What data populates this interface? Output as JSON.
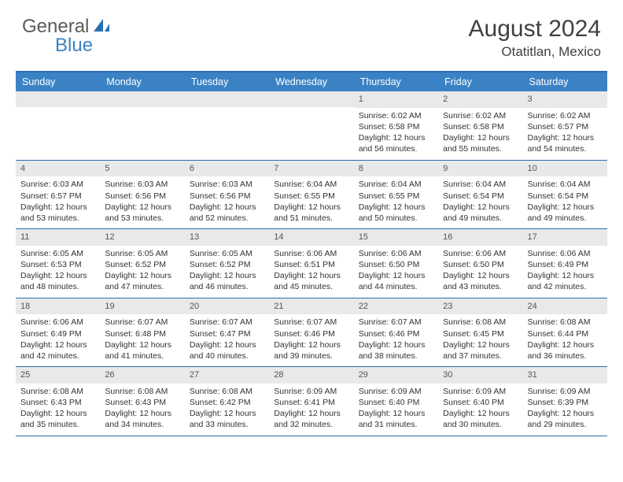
{
  "logo": {
    "text_general": "General",
    "text_blue": "Blue",
    "icon_color": "#2a6fb0"
  },
  "title": "August 2024",
  "location": "Otatitlan, Mexico",
  "colors": {
    "header_bg": "#3b82c4",
    "border": "#2a6fb0",
    "daynum_bg": "#e9e9e9",
    "text": "#333333",
    "title_text": "#404040"
  },
  "weekdays": [
    "Sunday",
    "Monday",
    "Tuesday",
    "Wednesday",
    "Thursday",
    "Friday",
    "Saturday"
  ],
  "weeks": [
    [
      null,
      null,
      null,
      null,
      {
        "n": "1",
        "sunrise": "6:02 AM",
        "sunset": "6:58 PM",
        "daylight": "12 hours and 56 minutes."
      },
      {
        "n": "2",
        "sunrise": "6:02 AM",
        "sunset": "6:58 PM",
        "daylight": "12 hours and 55 minutes."
      },
      {
        "n": "3",
        "sunrise": "6:02 AM",
        "sunset": "6:57 PM",
        "daylight": "12 hours and 54 minutes."
      }
    ],
    [
      {
        "n": "4",
        "sunrise": "6:03 AM",
        "sunset": "6:57 PM",
        "daylight": "12 hours and 53 minutes."
      },
      {
        "n": "5",
        "sunrise": "6:03 AM",
        "sunset": "6:56 PM",
        "daylight": "12 hours and 53 minutes."
      },
      {
        "n": "6",
        "sunrise": "6:03 AM",
        "sunset": "6:56 PM",
        "daylight": "12 hours and 52 minutes."
      },
      {
        "n": "7",
        "sunrise": "6:04 AM",
        "sunset": "6:55 PM",
        "daylight": "12 hours and 51 minutes."
      },
      {
        "n": "8",
        "sunrise": "6:04 AM",
        "sunset": "6:55 PM",
        "daylight": "12 hours and 50 minutes."
      },
      {
        "n": "9",
        "sunrise": "6:04 AM",
        "sunset": "6:54 PM",
        "daylight": "12 hours and 49 minutes."
      },
      {
        "n": "10",
        "sunrise": "6:04 AM",
        "sunset": "6:54 PM",
        "daylight": "12 hours and 49 minutes."
      }
    ],
    [
      {
        "n": "11",
        "sunrise": "6:05 AM",
        "sunset": "6:53 PM",
        "daylight": "12 hours and 48 minutes."
      },
      {
        "n": "12",
        "sunrise": "6:05 AM",
        "sunset": "6:52 PM",
        "daylight": "12 hours and 47 minutes."
      },
      {
        "n": "13",
        "sunrise": "6:05 AM",
        "sunset": "6:52 PM",
        "daylight": "12 hours and 46 minutes."
      },
      {
        "n": "14",
        "sunrise": "6:06 AM",
        "sunset": "6:51 PM",
        "daylight": "12 hours and 45 minutes."
      },
      {
        "n": "15",
        "sunrise": "6:06 AM",
        "sunset": "6:50 PM",
        "daylight": "12 hours and 44 minutes."
      },
      {
        "n": "16",
        "sunrise": "6:06 AM",
        "sunset": "6:50 PM",
        "daylight": "12 hours and 43 minutes."
      },
      {
        "n": "17",
        "sunrise": "6:06 AM",
        "sunset": "6:49 PM",
        "daylight": "12 hours and 42 minutes."
      }
    ],
    [
      {
        "n": "18",
        "sunrise": "6:06 AM",
        "sunset": "6:49 PM",
        "daylight": "12 hours and 42 minutes."
      },
      {
        "n": "19",
        "sunrise": "6:07 AM",
        "sunset": "6:48 PM",
        "daylight": "12 hours and 41 minutes."
      },
      {
        "n": "20",
        "sunrise": "6:07 AM",
        "sunset": "6:47 PM",
        "daylight": "12 hours and 40 minutes."
      },
      {
        "n": "21",
        "sunrise": "6:07 AM",
        "sunset": "6:46 PM",
        "daylight": "12 hours and 39 minutes."
      },
      {
        "n": "22",
        "sunrise": "6:07 AM",
        "sunset": "6:46 PM",
        "daylight": "12 hours and 38 minutes."
      },
      {
        "n": "23",
        "sunrise": "6:08 AM",
        "sunset": "6:45 PM",
        "daylight": "12 hours and 37 minutes."
      },
      {
        "n": "24",
        "sunrise": "6:08 AM",
        "sunset": "6:44 PM",
        "daylight": "12 hours and 36 minutes."
      }
    ],
    [
      {
        "n": "25",
        "sunrise": "6:08 AM",
        "sunset": "6:43 PM",
        "daylight": "12 hours and 35 minutes."
      },
      {
        "n": "26",
        "sunrise": "6:08 AM",
        "sunset": "6:43 PM",
        "daylight": "12 hours and 34 minutes."
      },
      {
        "n": "27",
        "sunrise": "6:08 AM",
        "sunset": "6:42 PM",
        "daylight": "12 hours and 33 minutes."
      },
      {
        "n": "28",
        "sunrise": "6:09 AM",
        "sunset": "6:41 PM",
        "daylight": "12 hours and 32 minutes."
      },
      {
        "n": "29",
        "sunrise": "6:09 AM",
        "sunset": "6:40 PM",
        "daylight": "12 hours and 31 minutes."
      },
      {
        "n": "30",
        "sunrise": "6:09 AM",
        "sunset": "6:40 PM",
        "daylight": "12 hours and 30 minutes."
      },
      {
        "n": "31",
        "sunrise": "6:09 AM",
        "sunset": "6:39 PM",
        "daylight": "12 hours and 29 minutes."
      }
    ]
  ],
  "labels": {
    "sunrise": "Sunrise:",
    "sunset": "Sunset:",
    "daylight": "Daylight:"
  }
}
